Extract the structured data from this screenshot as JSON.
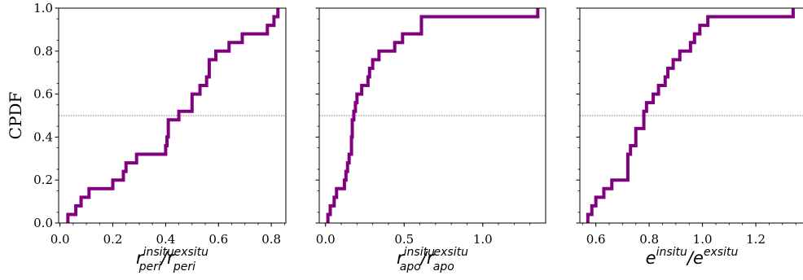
{
  "chart_data": [
    {
      "type": "line",
      "ylabel": "CPDF",
      "xlabel": {
        "base": [
          "r",
          "r"
        ],
        "sup": [
          "insitu",
          "exsitu"
        ],
        "sub": [
          "peri",
          "peri"
        ],
        "sep": "/"
      },
      "xlim": [
        -0.005,
        0.855
      ],
      "ylim": [
        0,
        1
      ],
      "xticks": [
        "0.0",
        "0.2",
        "0.4",
        "0.6",
        "0.8"
      ],
      "xtick_values": [
        0.0,
        0.2,
        0.4,
        0.6,
        0.8
      ],
      "yticks": [
        "0.0",
        "0.2",
        "0.4",
        "0.6",
        "0.8",
        "1.0"
      ],
      "ytick_values": [
        0.0,
        0.2,
        0.4,
        0.6,
        0.8,
        1.0
      ],
      "reference_line_y": 0.5,
      "color": "#800080",
      "step_x": [
        0.03,
        0.06,
        0.08,
        0.11,
        0.2,
        0.24,
        0.25,
        0.29,
        0.4,
        0.405,
        0.41,
        0.45,
        0.5,
        0.53,
        0.555,
        0.565,
        0.59,
        0.64,
        0.69,
        0.785,
        0.81,
        0.825
      ],
      "step_y": [
        0.04,
        0.08,
        0.12,
        0.16,
        0.2,
        0.24,
        0.28,
        0.32,
        0.36,
        0.4,
        0.48,
        0.52,
        0.6,
        0.64,
        0.68,
        0.76,
        0.8,
        0.84,
        0.88,
        0.92,
        0.96,
        1.0
      ]
    },
    {
      "type": "line",
      "ylabel": "",
      "xlabel": {
        "base": [
          "r",
          "r"
        ],
        "sup": [
          "insitu",
          "exsitu"
        ],
        "sub": [
          "apo",
          "apo"
        ],
        "sep": "/"
      },
      "xlim": [
        -0.04,
        1.4
      ],
      "ylim": [
        0,
        1
      ],
      "xticks": [
        "0.0",
        "0.5",
        "1.0"
      ],
      "xtick_values": [
        0.0,
        0.5,
        1.0
      ],
      "yticks": [],
      "ytick_values": [
        0.0,
        0.2,
        0.4,
        0.6,
        0.8,
        1.0
      ],
      "reference_line_y": 0.5,
      "color": "#800080",
      "step_x": [
        0.015,
        0.03,
        0.055,
        0.07,
        0.12,
        0.13,
        0.14,
        0.15,
        0.165,
        0.17,
        0.18,
        0.19,
        0.2,
        0.23,
        0.27,
        0.28,
        0.3,
        0.34,
        0.44,
        0.49,
        0.61,
        1.35
      ],
      "step_y": [
        0.04,
        0.08,
        0.12,
        0.16,
        0.2,
        0.24,
        0.28,
        0.32,
        0.4,
        0.48,
        0.52,
        0.56,
        0.6,
        0.64,
        0.68,
        0.72,
        0.76,
        0.8,
        0.84,
        0.88,
        0.96,
        1.0
      ]
    },
    {
      "type": "line",
      "ylabel": "",
      "xlabel": {
        "base": [
          "e",
          "e"
        ],
        "sup": [
          "insitu",
          "exsitu"
        ],
        "sub": [
          "",
          ""
        ],
        "sep": "/"
      },
      "xlim": [
        0.54,
        1.38
      ],
      "ylim": [
        0,
        1
      ],
      "xticks": [
        "0.6",
        "0.8",
        "1.0",
        "1.2"
      ],
      "xtick_values": [
        0.6,
        0.8,
        1.0,
        1.2
      ],
      "yticks": [],
      "ytick_values": [
        0.0,
        0.2,
        0.4,
        0.6,
        0.8,
        1.0
      ],
      "reference_line_y": 0.5,
      "color": "#800080",
      "step_x": [
        0.57,
        0.585,
        0.6,
        0.63,
        0.66,
        0.72,
        0.73,
        0.75,
        0.78,
        0.79,
        0.815,
        0.835,
        0.86,
        0.87,
        0.89,
        0.915,
        0.955,
        0.97,
        0.99,
        1.02,
        1.34
      ],
      "step_y": [
        0.04,
        0.08,
        0.12,
        0.16,
        0.2,
        0.32,
        0.36,
        0.44,
        0.52,
        0.56,
        0.6,
        0.64,
        0.68,
        0.72,
        0.76,
        0.8,
        0.84,
        0.88,
        0.92,
        0.96,
        1.0
      ]
    }
  ]
}
